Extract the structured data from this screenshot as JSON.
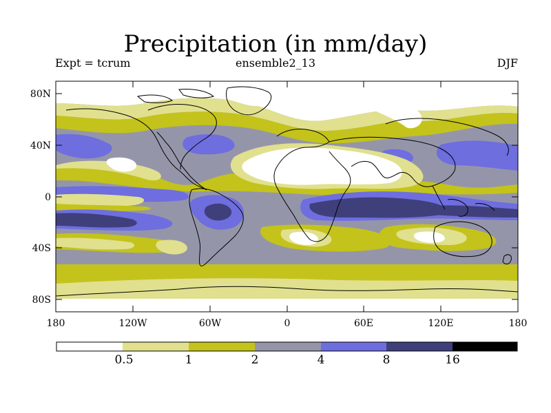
{
  "title": "Precipitation (in mm/day)",
  "subtitle": {
    "left": "Expt = tcrum",
    "center": "ensemble2_13",
    "right": "DJF"
  },
  "axes": {
    "lat_ticks": [
      "80N",
      "40N",
      "0",
      "40S",
      "80S"
    ],
    "lon_ticks": [
      "180",
      "120W",
      "60W",
      "0",
      "60E",
      "120E",
      "180"
    ]
  },
  "colorbar": {
    "labels": [
      "0.5",
      "1",
      "2",
      "4",
      "8",
      "16"
    ],
    "colors": [
      "#ffffff",
      "#e0e08f",
      "#c3c31b",
      "#9595aa",
      "#6e6edf",
      "#3f3f7c",
      "#000000"
    ]
  },
  "chart_data": {
    "type": "heatmap",
    "title": "Precipitation (in mm/day)",
    "season": "DJF",
    "experiment": "tcrum",
    "ensemble": "ensemble2_13",
    "units": "mm/day",
    "levels": [
      0.5,
      1,
      2,
      4,
      8,
      16
    ],
    "x_range": [
      -180,
      180
    ],
    "y_range": [
      -90,
      90
    ],
    "xlabel": "",
    "ylabel": ""
  }
}
